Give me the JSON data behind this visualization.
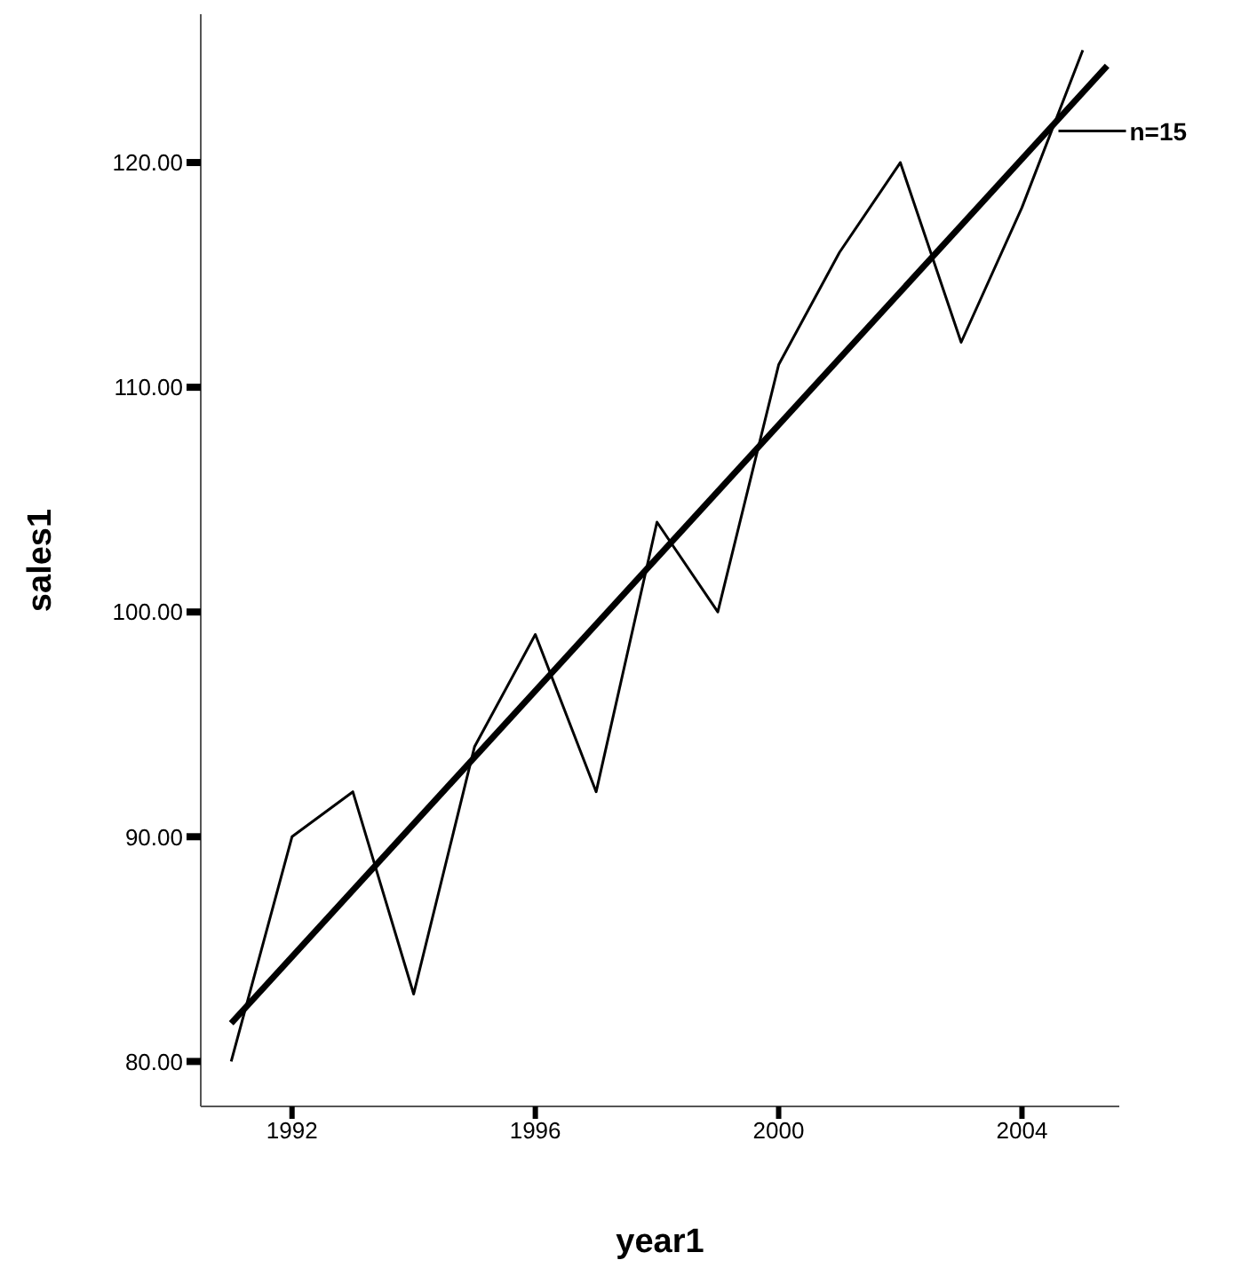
{
  "chart_data": {
    "type": "line",
    "xlabel": "year1",
    "ylabel": "sales1",
    "x": [
      1991,
      1992,
      1993,
      1994,
      1995,
      1996,
      1997,
      1998,
      1999,
      2000,
      2001,
      2002,
      2003,
      2004,
      2005
    ],
    "series": [
      {
        "color": "#000000",
        "values": [
          80,
          90,
          92,
          83,
          94,
          99,
          92,
          104,
          100,
          111,
          116,
          120,
          112,
          118,
          125
        ]
      },
      {
        "type": "line",
        "color": "#000000",
        "x": [
          1991,
          2005.4
        ],
        "values": [
          81.7,
          124.3
        ]
      }
    ],
    "annotations": [
      {
        "text": "n=15",
        "x": 2004.6,
        "y": 121.4
      }
    ],
    "xlim": [
      1990.5,
      2005.6
    ],
    "xticks": [
      1992,
      1996,
      2000,
      2004
    ],
    "ylim": [
      78,
      126.6
    ],
    "yticks": [
      {
        "value": 80,
        "label": "80.00"
      },
      {
        "value": 90,
        "label": "90.00"
      },
      {
        "value": 100,
        "label": "100.00"
      },
      {
        "value": 110,
        "label": "110.00"
      },
      {
        "value": 120,
        "label": "120.00"
      }
    ],
    "grid": false,
    "legend": false,
    "marker": "none",
    "line_style": "solid"
  }
}
